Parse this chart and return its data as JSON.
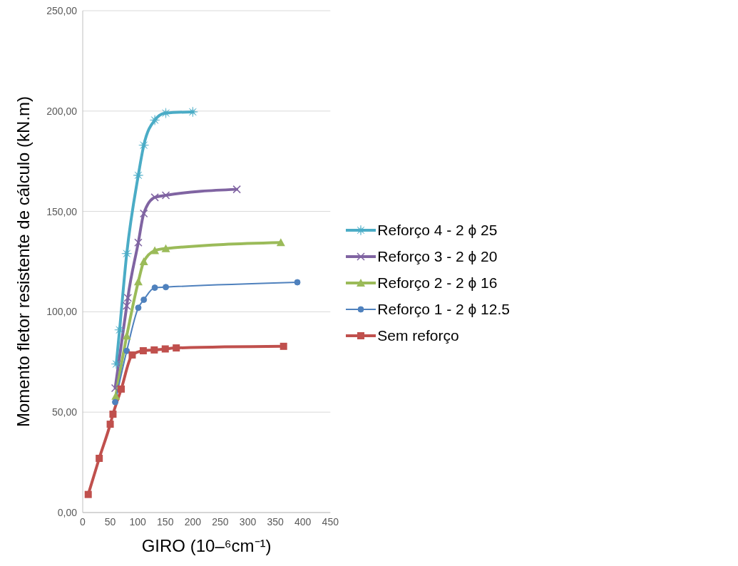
{
  "chart_data": {
    "type": "line",
    "xlabel": "GIRO (10–⁶cm⁻¹)",
    "ylabel": "Momento fletor resistente de cálculo (kN.m)",
    "xlim": [
      0,
      450
    ],
    "xticks": [
      0,
      50,
      100,
      150,
      200,
      250,
      300,
      350,
      400,
      450
    ],
    "ylim": [
      0,
      250
    ],
    "yticks": [
      {
        "value": 0,
        "label": "0,00"
      },
      {
        "value": 50,
        "label": "50,00"
      },
      {
        "value": 100,
        "label": "100,00"
      },
      {
        "value": 150,
        "label": "150,00"
      },
      {
        "value": 200,
        "label": "200,00"
      },
      {
        "value": 250,
        "label": "250,00"
      }
    ],
    "grid": "y",
    "legend": "right",
    "series": [
      {
        "name": "Reforço 4 - 2 ϕ 25",
        "color": "#4bacc6",
        "marker": "star",
        "x": [
          61,
          67,
          80,
          101,
          111,
          131,
          151,
          200
        ],
        "values": [
          74,
          91,
          129,
          168,
          183,
          195.5,
          199,
          199.6
        ]
      },
      {
        "name": "Reforço 3 - 2 ϕ 20",
        "color": "#8064a2",
        "marker": "cross",
        "x": [
          59,
          80,
          82,
          101,
          111,
          131,
          151,
          280
        ],
        "values": [
          62,
          103,
          107,
          134.5,
          149,
          157,
          158,
          161
        ]
      },
      {
        "name": "Reforço 2 - 2 ϕ 16",
        "color": "#9bbb59",
        "marker": "triangle",
        "x": [
          60,
          80,
          101,
          111,
          131,
          151,
          360
        ],
        "values": [
          58,
          88,
          115,
          125,
          130.5,
          131.5,
          134.5
        ]
      },
      {
        "name": "Reforço 1 - 2 ϕ 12.5",
        "color": "#4f81bd",
        "marker": "circle",
        "x": [
          59,
          80,
          101,
          111,
          131,
          151,
          390
        ],
        "values": [
          55,
          80.5,
          102,
          106,
          112,
          112.3,
          114.7
        ]
      },
      {
        "name": "Sem reforço",
        "color": "#c0504d",
        "marker": "square",
        "x": [
          10,
          30,
          50,
          55,
          70,
          90,
          110,
          130,
          150,
          170,
          365
        ],
        "values": [
          9,
          27,
          44,
          49,
          61.5,
          78.5,
          80.6,
          81,
          81.5,
          82,
          82.8
        ]
      }
    ]
  }
}
